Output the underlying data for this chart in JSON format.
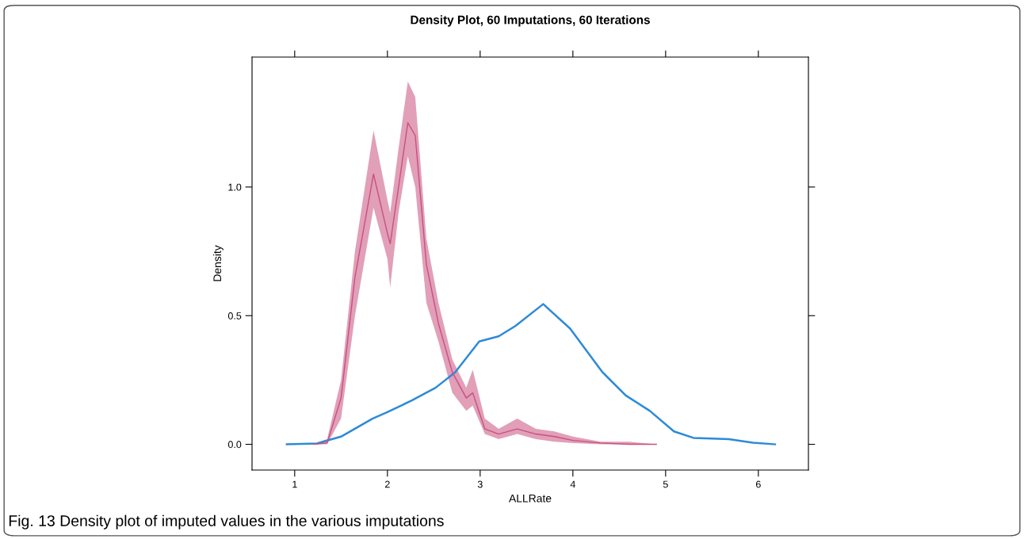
{
  "chart_data": {
    "type": "line",
    "title": "Density Plot, 60 Imputations, 60 Iterations",
    "xlabel": "ALLRate",
    "ylabel": "Density",
    "annotations": [
      "Fig. 13 Density plot of imputed values in the various imputations"
    ],
    "xlim": [
      0.54,
      6.54
    ],
    "ylim": [
      -0.1,
      1.505
    ],
    "xticks": [
      1,
      2,
      3,
      4,
      5,
      6
    ],
    "yticks": [
      {
        "value": 0,
        "label": "0.0"
      },
      {
        "value": 0.5,
        "label": "0.5"
      },
      {
        "value": 1,
        "label": "1.0"
      }
    ],
    "grid": false,
    "marker": "none",
    "line_style": "solid",
    "series": [
      {
        "color": "#2d8ad6",
        "x": [
          0.915,
          1.24,
          1.5,
          1.84,
          2.0,
          2.26,
          2.52,
          2.73,
          2.99,
          3.2,
          3.38,
          3.68,
          3.97,
          4.32,
          4.57,
          4.83,
          5.09,
          5.3,
          5.68,
          5.94,
          6.18
        ],
        "values": [
          0,
          0.003,
          0.03,
          0.1,
          0.125,
          0.17,
          0.22,
          0.28,
          0.4,
          0.42,
          0.46,
          0.545,
          0.45,
          0.28,
          0.19,
          0.13,
          0.05,
          0.025,
          0.02,
          0.006,
          0
        ]
      },
      {
        "color": "#c8507e",
        "x": [
          1.2,
          1.35,
          1.5,
          1.65,
          1.85,
          2.0,
          2.03,
          2.12,
          2.22,
          2.3,
          2.42,
          2.55,
          2.7,
          2.85,
          2.92,
          3.05,
          3.2,
          3.4,
          3.6,
          3.8,
          4.0,
          4.3,
          4.6,
          4.9
        ],
        "values": [
          0,
          0.005,
          0.18,
          0.65,
          1.05,
          0.82,
          0.78,
          1.0,
          1.25,
          1.2,
          0.7,
          0.47,
          0.28,
          0.18,
          0.2,
          0.06,
          0.04,
          0.06,
          0.04,
          0.03,
          0.015,
          0.005,
          0,
          0
        ],
        "lower": [
          0,
          0,
          0.1,
          0.5,
          0.92,
          0.72,
          0.61,
          0.9,
          1.12,
          1.0,
          0.55,
          0.4,
          0.2,
          0.13,
          0.15,
          0.04,
          0.02,
          0.04,
          0.02,
          0.01,
          0.005,
          0,
          0,
          0
        ],
        "upper": [
          0,
          0.02,
          0.25,
          0.75,
          1.22,
          0.95,
          0.9,
          1.15,
          1.41,
          1.35,
          0.8,
          0.55,
          0.33,
          0.22,
          0.29,
          0.1,
          0.06,
          0.1,
          0.06,
          0.05,
          0.03,
          0.01,
          0.01,
          0
        ]
      }
    ]
  }
}
